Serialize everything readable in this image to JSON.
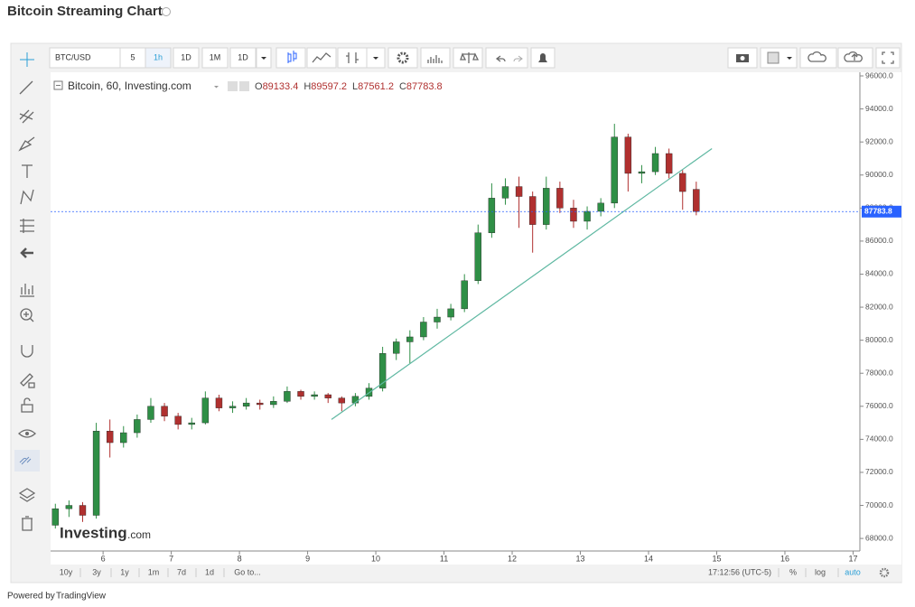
{
  "header": {
    "title": "Bitcoin Streaming Chart"
  },
  "toolbar": {
    "symbol": "BTC/USD",
    "intervals": [
      "5",
      "1h",
      "1D",
      "1M",
      "1D"
    ]
  },
  "legend": {
    "text": "Bitcoin, 60, Investing.com",
    "ohlc_labels": [
      "O",
      "H",
      "L",
      "C"
    ]
  },
  "bottom_bar": {
    "ranges": [
      "10y",
      "3y",
      "1y",
      "1m",
      "7d",
      "1d"
    ],
    "goto": "Go to...",
    "time": "17:12:56 (UTC-5)",
    "options": [
      "%",
      "log",
      "auto"
    ]
  },
  "watermark": {
    "brand": "Investing",
    "suffix": ".com"
  },
  "footer": {
    "prefix": "Powered by",
    "link": "TradingView"
  },
  "chart_data": {
    "type": "candlestick",
    "x": [
      5.3,
      5.5,
      5.7,
      5.9,
      6.1,
      6.3,
      6.5,
      6.7,
      6.9,
      7.1,
      7.3,
      7.5,
      7.7,
      7.9,
      8.1,
      8.3,
      8.5,
      8.7,
      8.9,
      9.1,
      9.3,
      9.5,
      9.7,
      9.9,
      10.1,
      10.3,
      10.5,
      10.7,
      10.9,
      11.1,
      11.3,
      11.5,
      11.7,
      11.9,
      12.1,
      12.3,
      12.5,
      12.7,
      12.9,
      13.1,
      13.3,
      13.5,
      13.7,
      13.9,
      14.1,
      14.3,
      14.5,
      14.7
    ],
    "open": [
      68800,
      69800,
      70000,
      69400,
      74500,
      73800,
      74400,
      75200,
      76000,
      75400,
      74900,
      75000,
      76500,
      75900,
      76000,
      76200,
      76100,
      76300,
      76900,
      76600,
      76700,
      76500,
      76200,
      76600,
      77100,
      79200,
      79900,
      80200,
      81100,
      81400,
      81900,
      83600,
      86500,
      88600,
      89300,
      88700,
      87000,
      89200,
      88000,
      87200,
      87800,
      88300,
      92300,
      90100,
      90200,
      91300,
      90100,
      89133.4
    ],
    "high": [
      70100,
      70300,
      70200,
      75000,
      75200,
      74800,
      75500,
      76500,
      76200,
      75600,
      75300,
      76900,
      76700,
      76300,
      76500,
      76400,
      76600,
      77200,
      77000,
      76900,
      76800,
      76600,
      76800,
      77400,
      79600,
      80100,
      80600,
      81400,
      81900,
      82200,
      84000,
      87000,
      89500,
      89800,
      89900,
      89000,
      89900,
      89600,
      88500,
      88100,
      88600,
      93100,
      92500,
      90600,
      91700,
      91600,
      90300,
      89597.2
    ],
    "low": [
      68600,
      69300,
      69000,
      69200,
      72900,
      73500,
      74100,
      75000,
      75100,
      74600,
      74600,
      74900,
      75700,
      75600,
      75800,
      75800,
      75900,
      76200,
      76400,
      76400,
      76200,
      75700,
      76000,
      76400,
      76900,
      78800,
      78600,
      80000,
      80700,
      81200,
      81700,
      83400,
      86200,
      88200,
      86800,
      85300,
      86700,
      87700,
      86800,
      86700,
      87500,
      88000,
      89000,
      89500,
      90000,
      89800,
      87900,
      87561.2
    ],
    "close": [
      69800,
      70000,
      69400,
      74500,
      73800,
      74400,
      75200,
      76000,
      75400,
      74900,
      75000,
      76500,
      75900,
      76000,
      76200,
      76100,
      76300,
      76900,
      76600,
      76700,
      76500,
      76200,
      76600,
      77100,
      79200,
      79900,
      80200,
      81100,
      81400,
      81900,
      83600,
      86500,
      88600,
      89300,
      88700,
      87000,
      89200,
      88000,
      87200,
      87800,
      88300,
      92300,
      90100,
      90200,
      91300,
      90100,
      89000,
      87783.8
    ],
    "up_color": "#2f8f46",
    "down_color": "#b0302f",
    "last_price_color": "#2962ff",
    "trend_line": {
      "x": [
        9.35,
        14.93
      ],
      "y": [
        75200,
        91600
      ],
      "color": "#5fb8a2"
    },
    "xlim": [
      5.23,
      17.1
    ],
    "xticks": [
      6,
      7,
      8,
      9,
      10,
      11,
      12,
      13,
      14,
      15,
      16,
      17
    ],
    "ylim": [
      67240,
      96220
    ],
    "yticks": [
      {
        "value": 68000,
        "label": "68000.0"
      },
      {
        "value": 70000,
        "label": "70000.0"
      },
      {
        "value": 72000,
        "label": "72000.0"
      },
      {
        "value": 74000,
        "label": "74000.0"
      },
      {
        "value": 76000,
        "label": "76000.0"
      },
      {
        "value": 78000,
        "label": "78000.0"
      },
      {
        "value": 80000,
        "label": "80000.0"
      },
      {
        "value": 82000,
        "label": "82000.0"
      },
      {
        "value": 84000,
        "label": "84000.0"
      },
      {
        "value": 86000,
        "label": "86000.0"
      },
      {
        "value": 88000,
        "label": "88000.0"
      },
      {
        "value": 90000,
        "label": "90000.0"
      },
      {
        "value": 92000,
        "label": "92000.0"
      },
      {
        "value": 94000,
        "label": "94000.0"
      },
      {
        "value": 96000,
        "label": "96000.0"
      }
    ],
    "grid": false
  }
}
